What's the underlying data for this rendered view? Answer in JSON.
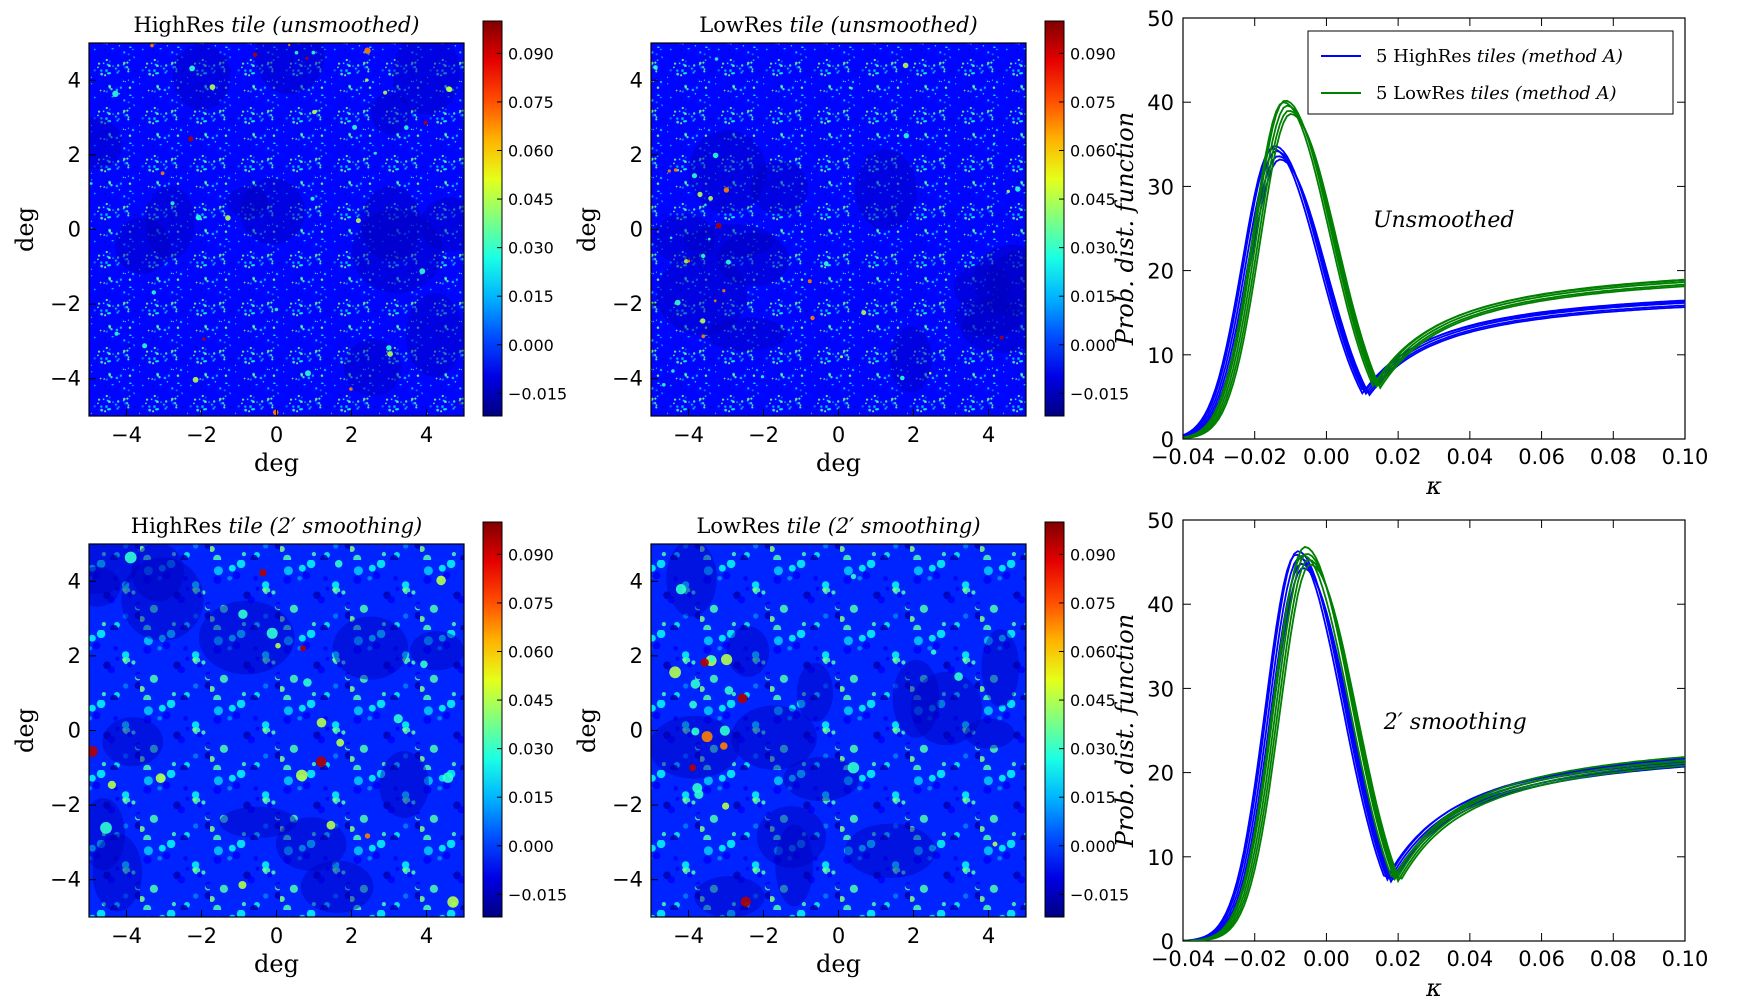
{
  "figure": {
    "title": ""
  },
  "chart_data": [
    {
      "type": "heatmap",
      "title": "HighRes tile (unsmoothed)",
      "title_plain": "HighRes ",
      "title_italic": "tile (unsmoothed)",
      "xlabel": "deg",
      "ylabel": "deg",
      "xlim": [
        -5,
        5
      ],
      "ylim": [
        -5,
        5
      ],
      "xticks": [
        -4,
        -2,
        0,
        2,
        4
      ],
      "yticks": [
        -4,
        -2,
        0,
        2,
        4
      ],
      "xtick_labels": [
        "−4",
        "−2",
        "0",
        "2",
        "4"
      ],
      "ytick_labels": [
        "−4",
        "−2",
        "0",
        "2",
        "4"
      ],
      "colormap": "jet",
      "color_range": [
        -0.022,
        0.1
      ],
      "colorbar_ticks": [
        0.09,
        0.075,
        0.06,
        0.045,
        0.03,
        0.015,
        0.0,
        -0.015
      ],
      "colorbar_labels": [
        "0.090",
        "0.075",
        "0.060",
        "0.045",
        "0.030",
        "0.015",
        "0.000",
        "−0.015"
      ]
    },
    {
      "type": "heatmap",
      "title": "LowRes tile (unsmoothed)",
      "title_plain": "LowRes ",
      "title_italic": "tile (unsmoothed)",
      "xlabel": "deg",
      "ylabel": "deg",
      "xlim": [
        -5,
        5
      ],
      "ylim": [
        -5,
        5
      ],
      "xticks": [
        -4,
        -2,
        0,
        2,
        4
      ],
      "yticks": [
        -4,
        -2,
        0,
        2,
        4
      ],
      "xtick_labels": [
        "−4",
        "−2",
        "0",
        "2",
        "4"
      ],
      "ytick_labels": [
        "−4",
        "−2",
        "0",
        "2",
        "4"
      ],
      "colormap": "jet",
      "color_range": [
        -0.022,
        0.1
      ],
      "colorbar_ticks": [
        0.09,
        0.075,
        0.06,
        0.045,
        0.03,
        0.015,
        0.0,
        -0.015
      ],
      "colorbar_labels": [
        "0.090",
        "0.075",
        "0.060",
        "0.045",
        "0.030",
        "0.015",
        "0.000",
        "−0.015"
      ]
    },
    {
      "type": "line",
      "title": "",
      "annotation": "Unsmoothed",
      "xlabel": "κ",
      "ylabel": "Prob. dist. function",
      "xlim": [
        -0.04,
        0.1
      ],
      "ylim": [
        0,
        50
      ],
      "xticks": [
        -0.04,
        -0.02,
        0.0,
        0.02,
        0.04,
        0.06,
        0.08,
        0.1
      ],
      "xtick_labels": [
        "−0.04",
        "−0.02",
        "0.00",
        "0.02",
        "0.04",
        "0.06",
        "0.08",
        "0.10"
      ],
      "yticks": [
        0,
        10,
        20,
        30,
        40,
        50
      ],
      "ytick_labels": [
        "0",
        "10",
        "20",
        "30",
        "40",
        "50"
      ],
      "legend_position": "top-right",
      "legend": [
        {
          "color": "#0000ff",
          "label_plain": "5 HighRes ",
          "label_italic": "tiles (method A)"
        },
        {
          "color": "#008000",
          "label_plain": "5 LowRes ",
          "label_italic": "tiles (method A)"
        }
      ],
      "series": [
        {
          "name": "HighRes tile 1",
          "color": "#0000ff",
          "peak": -0.0145,
          "peak_value": 34.8
        },
        {
          "name": "HighRes tile 2",
          "color": "#0000ff",
          "peak": -0.014,
          "peak_value": 34.2
        },
        {
          "name": "HighRes tile 3",
          "color": "#0000ff",
          "peak": -0.0135,
          "peak_value": 33.6
        },
        {
          "name": "HighRes tile 4",
          "color": "#0000ff",
          "peak": -0.013,
          "peak_value": 33.2
        },
        {
          "name": "HighRes tile 5",
          "color": "#0000ff",
          "peak": -0.015,
          "peak_value": 34.5
        },
        {
          "name": "LowRes tile 1",
          "color": "#008000",
          "peak": -0.0115,
          "peak_value": 40.2
        },
        {
          "name": "LowRes tile 2",
          "color": "#008000",
          "peak": -0.011,
          "peak_value": 39.6
        },
        {
          "name": "LowRes tile 3",
          "color": "#008000",
          "peak": -0.0105,
          "peak_value": 39.0
        },
        {
          "name": "LowRes tile 4",
          "color": "#008000",
          "peak": -0.01,
          "peak_value": 38.6
        },
        {
          "name": "LowRes tile 5",
          "color": "#008000",
          "peak": -0.012,
          "peak_value": 40.0
        }
      ]
    },
    {
      "type": "heatmap",
      "title": "HighRes tile (2′ smoothing)",
      "title_plain": "HighRes ",
      "title_italic": "tile (2′ smoothing)",
      "xlabel": "deg",
      "ylabel": "deg",
      "xlim": [
        -5,
        5
      ],
      "ylim": [
        -5,
        5
      ],
      "xticks": [
        -4,
        -2,
        0,
        2,
        4
      ],
      "yticks": [
        -4,
        -2,
        0,
        2,
        4
      ],
      "xtick_labels": [
        "−4",
        "−2",
        "0",
        "2",
        "4"
      ],
      "ytick_labels": [
        "−4",
        "−2",
        "0",
        "2",
        "4"
      ],
      "colormap": "jet",
      "color_range": [
        -0.022,
        0.1
      ],
      "colorbar_ticks": [
        0.09,
        0.075,
        0.06,
        0.045,
        0.03,
        0.015,
        0.0,
        -0.015
      ],
      "colorbar_labels": [
        "0.090",
        "0.075",
        "0.060",
        "0.045",
        "0.030",
        "0.015",
        "0.000",
        "−0.015"
      ]
    },
    {
      "type": "heatmap",
      "title": "LowRes tile (2′ smoothing)",
      "title_plain": "LowRes ",
      "title_italic": "tile (2′ smoothing)",
      "xlabel": "deg",
      "ylabel": "deg",
      "xlim": [
        -5,
        5
      ],
      "ylim": [
        -5,
        5
      ],
      "xticks": [
        -4,
        -2,
        0,
        2,
        4
      ],
      "yticks": [
        -4,
        -2,
        0,
        2,
        4
      ],
      "xtick_labels": [
        "−4",
        "−2",
        "0",
        "2",
        "4"
      ],
      "ytick_labels": [
        "−4",
        "−2",
        "0",
        "2",
        "4"
      ],
      "colormap": "jet",
      "color_range": [
        -0.022,
        0.1
      ],
      "colorbar_ticks": [
        0.09,
        0.075,
        0.06,
        0.045,
        0.03,
        0.015,
        0.0,
        -0.015
      ],
      "colorbar_labels": [
        "0.090",
        "0.075",
        "0.060",
        "0.045",
        "0.030",
        "0.015",
        "0.000",
        "−0.015"
      ]
    },
    {
      "type": "line",
      "title": "",
      "annotation": "2′ smoothing",
      "xlabel": "κ",
      "ylabel": "Prob. dist. function",
      "xlim": [
        -0.04,
        0.1
      ],
      "ylim": [
        0,
        50
      ],
      "xticks": [
        -0.04,
        -0.02,
        0.0,
        0.02,
        0.04,
        0.06,
        0.08,
        0.1
      ],
      "xtick_labels": [
        "−0.04",
        "−0.02",
        "0.00",
        "0.02",
        "0.04",
        "0.06",
        "0.08",
        "0.10"
      ],
      "yticks": [
        0,
        10,
        20,
        30,
        40,
        50
      ],
      "ytick_labels": [
        "0",
        "10",
        "20",
        "30",
        "40",
        "50"
      ],
      "series": [
        {
          "name": "HighRes tile 1",
          "color": "#0000ff",
          "peak": -0.008,
          "peak_value": 46.3
        },
        {
          "name": "HighRes tile 2",
          "color": "#0000ff",
          "peak": -0.0075,
          "peak_value": 45.5
        },
        {
          "name": "HighRes tile 3",
          "color": "#0000ff",
          "peak": -0.007,
          "peak_value": 44.8
        },
        {
          "name": "HighRes tile 4",
          "color": "#0000ff",
          "peak": -0.0065,
          "peak_value": 44.3
        },
        {
          "name": "HighRes tile 5",
          "color": "#0000ff",
          "peak": -0.0085,
          "peak_value": 45.9
        },
        {
          "name": "LowRes tile 1",
          "color": "#008000",
          "peak": -0.006,
          "peak_value": 46.8
        },
        {
          "name": "LowRes tile 2",
          "color": "#008000",
          "peak": -0.0055,
          "peak_value": 46.0
        },
        {
          "name": "LowRes tile 3",
          "color": "#008000",
          "peak": -0.005,
          "peak_value": 45.3
        },
        {
          "name": "LowRes tile 4",
          "color": "#008000",
          "peak": -0.0045,
          "peak_value": 44.7
        },
        {
          "name": "LowRes tile 5",
          "color": "#008000",
          "peak": -0.0065,
          "peak_value": 45.8
        }
      ]
    }
  ]
}
